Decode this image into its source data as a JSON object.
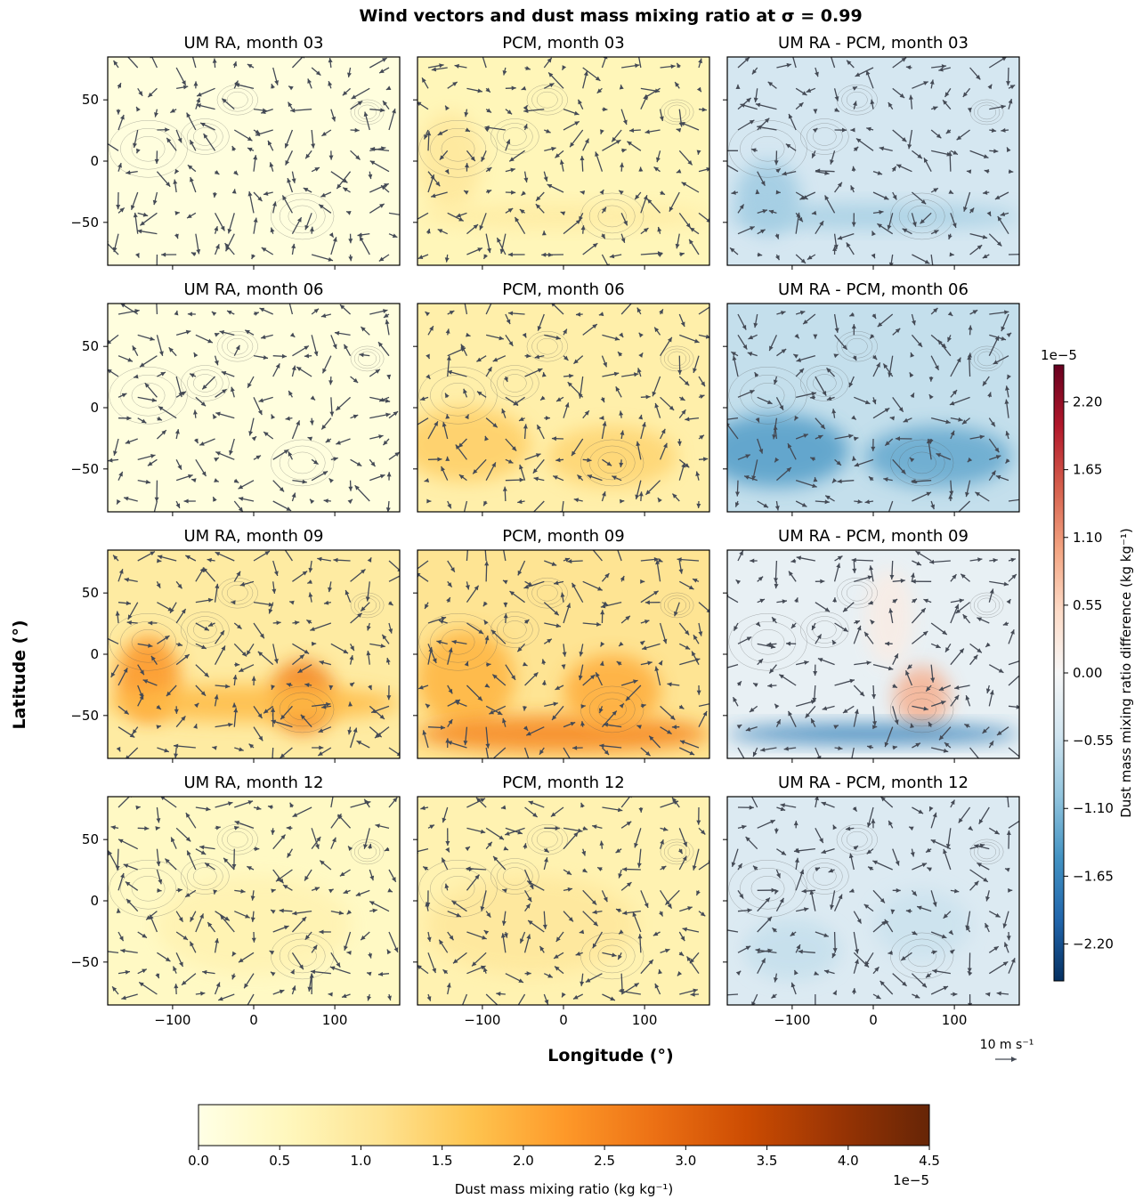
{
  "figure": {
    "suptitle": "Wind vectors and dust mass mixing ratio at σ = 0.99",
    "xlabel": "Longitude (°)",
    "ylabel": "Latitude (°)",
    "quiver_key_label": "10 m s⁻¹"
  },
  "chart_data": {
    "type": "heatmap",
    "grid": {
      "rows": 4,
      "cols": 3
    },
    "x_ticks": [
      -100,
      0,
      100
    ],
    "y_ticks": [
      50,
      0,
      -50
    ],
    "xlim": [
      -180,
      180
    ],
    "ylim": [
      -85,
      85
    ],
    "panels": [
      {
        "title": "UM RA, month 03",
        "kind": "abs",
        "row": 0,
        "col": 0,
        "blobs": [],
        "base": 0.1
      },
      {
        "title": "PCM, month 03",
        "kind": "abs",
        "row": 0,
        "col": 1,
        "base": 0.6,
        "blobs": [
          {
            "lon": -140,
            "lat": 0,
            "rx": 40,
            "ry": 40,
            "v": 1.0
          },
          {
            "lon": 0,
            "lat": -45,
            "rx": 180,
            "ry": 10,
            "v": 0.9
          }
        ]
      },
      {
        "title": "UM RA - PCM, month 03",
        "kind": "diff",
        "row": 0,
        "col": 2,
        "base": -0.45,
        "blobs": [
          {
            "lon": -130,
            "lat": -30,
            "rx": 40,
            "ry": 30,
            "v": -0.9
          },
          {
            "lon": 0,
            "lat": -45,
            "rx": 180,
            "ry": 10,
            "v": -0.85
          }
        ]
      },
      {
        "title": "UM RA, month 06",
        "kind": "abs",
        "row": 1,
        "col": 0,
        "blobs": [],
        "base": 0.1
      },
      {
        "title": "PCM, month 06",
        "kind": "abs",
        "row": 1,
        "col": 1,
        "base": 0.8,
        "blobs": [
          {
            "lon": -120,
            "lat": -30,
            "rx": 80,
            "ry": 30,
            "v": 1.5
          },
          {
            "lon": 60,
            "lat": -40,
            "rx": 80,
            "ry": 25,
            "v": 1.4
          }
        ]
      },
      {
        "title": "UM RA - PCM, month 06",
        "kind": "diff",
        "row": 1,
        "col": 2,
        "base": -0.6,
        "blobs": [
          {
            "lon": -120,
            "lat": -35,
            "rx": 90,
            "ry": 30,
            "v": -1.4
          },
          {
            "lon": 80,
            "lat": -40,
            "rx": 90,
            "ry": 25,
            "v": -1.3
          }
        ]
      },
      {
        "title": "UM RA, month 09",
        "kind": "abs",
        "row": 2,
        "col": 0,
        "base": 0.9,
        "blobs": [
          {
            "lon": -130,
            "lat": -20,
            "rx": 40,
            "ry": 35,
            "v": 2.3
          },
          {
            "lon": 60,
            "lat": -35,
            "rx": 40,
            "ry": 30,
            "v": 2.6
          },
          {
            "lon": 0,
            "lat": -40,
            "rx": 180,
            "ry": 15,
            "v": 1.8
          }
        ]
      },
      {
        "title": "PCM, month 09",
        "kind": "abs",
        "row": 2,
        "col": 1,
        "base": 1.1,
        "blobs": [
          {
            "lon": -120,
            "lat": -20,
            "rx": 60,
            "ry": 40,
            "v": 1.9
          },
          {
            "lon": 0,
            "lat": -65,
            "rx": 180,
            "ry": 15,
            "v": 2.5
          },
          {
            "lon": 60,
            "lat": -30,
            "rx": 60,
            "ry": 30,
            "v": 2.0
          }
        ]
      },
      {
        "title": "UM RA - PCM, month 09",
        "kind": "diff",
        "row": 2,
        "col": 2,
        "base": -0.2,
        "blobs": [
          {
            "lon": 60,
            "lat": -35,
            "rx": 35,
            "ry": 25,
            "v": 0.9
          },
          {
            "lon": 20,
            "lat": 30,
            "rx": 30,
            "ry": 40,
            "v": 0.2
          },
          {
            "lon": 0,
            "lat": -65,
            "rx": 180,
            "ry": 8,
            "v": -1.7
          }
        ]
      },
      {
        "title": "UM RA, month 12",
        "kind": "abs",
        "row": 3,
        "col": 0,
        "base": 0.45,
        "blobs": [
          {
            "lon": 0,
            "lat": -20,
            "rx": 120,
            "ry": 40,
            "v": 0.7
          }
        ]
      },
      {
        "title": "PCM, month 12",
        "kind": "abs",
        "row": 3,
        "col": 1,
        "base": 0.7,
        "blobs": [
          {
            "lon": -40,
            "lat": -20,
            "rx": 130,
            "ry": 40,
            "v": 1.0
          }
        ]
      },
      {
        "title": "UM RA - PCM, month 12",
        "kind": "diff",
        "row": 3,
        "col": 2,
        "base": -0.35,
        "blobs": [
          {
            "lon": -100,
            "lat": -40,
            "rx": 60,
            "ry": 25,
            "v": -0.6
          },
          {
            "lon": 60,
            "lat": -20,
            "rx": 60,
            "ry": 30,
            "v": -0.55
          }
        ]
      }
    ],
    "colorbar_abs": {
      "label": "Dust mass mixing ratio (kg kg⁻¹)",
      "range": [
        0.0,
        4.5
      ],
      "ticks": [
        "0.0",
        "0.5",
        "1.0",
        "1.5",
        "2.0",
        "2.5",
        "3.0",
        "3.5",
        "4.0",
        "4.5"
      ],
      "offset_text": "1e−5",
      "colors": [
        "#ffffe5",
        "#fff7bc",
        "#fee391",
        "#fec44f",
        "#fe9929",
        "#ec7014",
        "#cc4c02",
        "#993404",
        "#662506"
      ]
    },
    "colorbar_diff": {
      "label": "Dust mass mixing ratio difference (kg kg⁻¹)",
      "range": [
        -2.5,
        2.5
      ],
      "ticks": [
        "2.20",
        "1.65",
        "1.10",
        "0.55",
        "0.00",
        "−0.55",
        "−1.10",
        "−1.65",
        "−2.20"
      ],
      "tick_values": [
        2.2,
        1.65,
        1.1,
        0.55,
        0.0,
        -0.55,
        -1.1,
        -1.65,
        -2.2
      ],
      "offset_text": "1e−5",
      "colors": [
        "#053061",
        "#2166ac",
        "#4393c3",
        "#92c5de",
        "#d1e5f0",
        "#f7f7f7",
        "#fddbc7",
        "#f4a582",
        "#d6604d",
        "#b2182b",
        "#67001f"
      ]
    }
  }
}
